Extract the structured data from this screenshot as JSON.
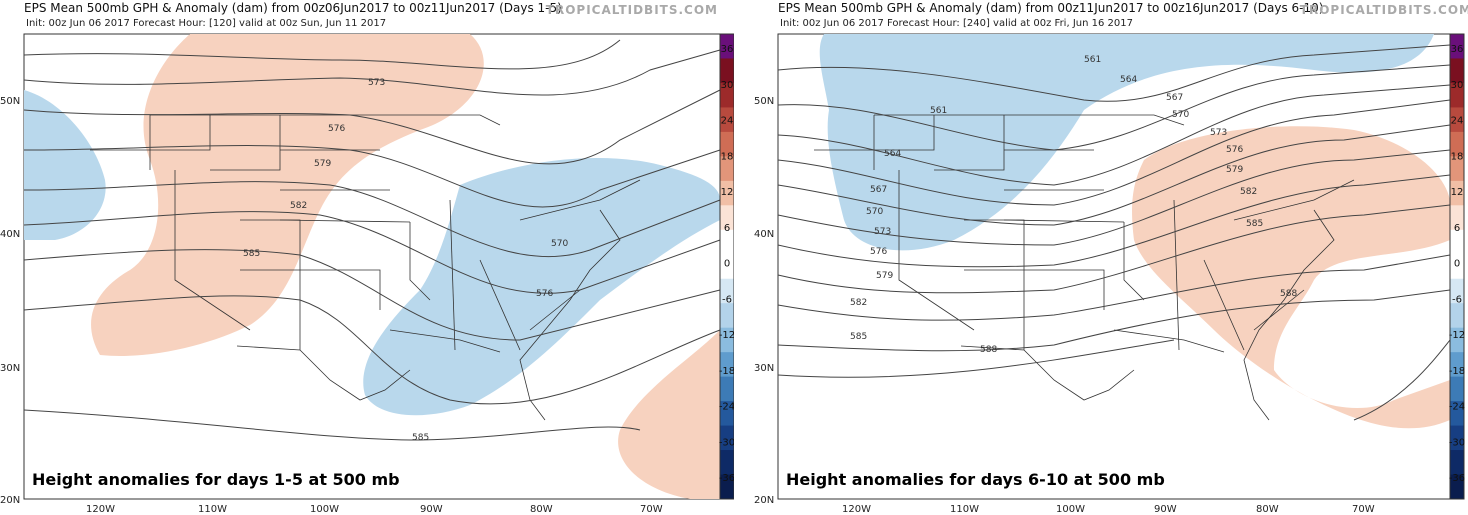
{
  "panels": [
    {
      "title": "EPS Mean 500mb GPH & Anomaly (dam) from 00z06Jun2017 to 00z11Jun2017 (Days 1-5)",
      "brand": "TROPICALTIDBITS.COM",
      "subtitle": "Init: 00z Jun 06 2017   Forecast Hour: [120]   valid at 00z Sun, Jun 11 2017",
      "caption": "Height anomalies for days 1-5 at 500 mb",
      "contour_labels": [
        "573",
        "576",
        "579",
        "582",
        "585",
        "570",
        "576",
        "585"
      ]
    },
    {
      "title": "EPS Mean 500mb GPH & Anomaly (dam) from 00z11Jun2017 to 00z16Jun2017 (Days 6-10)",
      "brand": "TROPICALTIDBITS.COM",
      "subtitle": "Init: 00z Jun 06 2017   Forecast Hour: [240]   valid at 00z Fri, Jun 16 2017",
      "caption": "Height anomalies for days 6-10 at 500 mb",
      "contour_labels": [
        "561",
        "564",
        "567",
        "570",
        "573",
        "576",
        "579",
        "582",
        "585",
        "588",
        "561",
        "564",
        "567",
        "570",
        "573",
        "576",
        "579",
        "582",
        "585",
        "588"
      ]
    }
  ],
  "latitudes": [
    "50N",
    "40N",
    "30N",
    "20N"
  ],
  "longitudes": [
    "120W",
    "110W",
    "100W",
    "90W",
    "80W",
    "70W"
  ],
  "colorbar": {
    "labels": [
      "36",
      "30",
      "24",
      "18",
      "12",
      "6",
      "0",
      "-6",
      "-12",
      "-18",
      "-24",
      "-30",
      "-36"
    ],
    "colors": [
      "#6a0f7a",
      "#7a1020",
      "#9c2a2a",
      "#b84a3e",
      "#cf6d55",
      "#e2957a",
      "#f1bfa6",
      "#fbe3d6",
      "#ffffff",
      "#ffffff",
      "#d6e8f4",
      "#b3d3ea",
      "#8bbcdf",
      "#5f9ccd",
      "#3d7bb6",
      "#24599d",
      "#173e82",
      "#0e2a66",
      "#0a1d4e"
    ]
  },
  "anomaly_colors": {
    "positive": "#f7d2bf",
    "negative": "#b9d8ec",
    "contour": "#444444",
    "border": "#333333"
  }
}
